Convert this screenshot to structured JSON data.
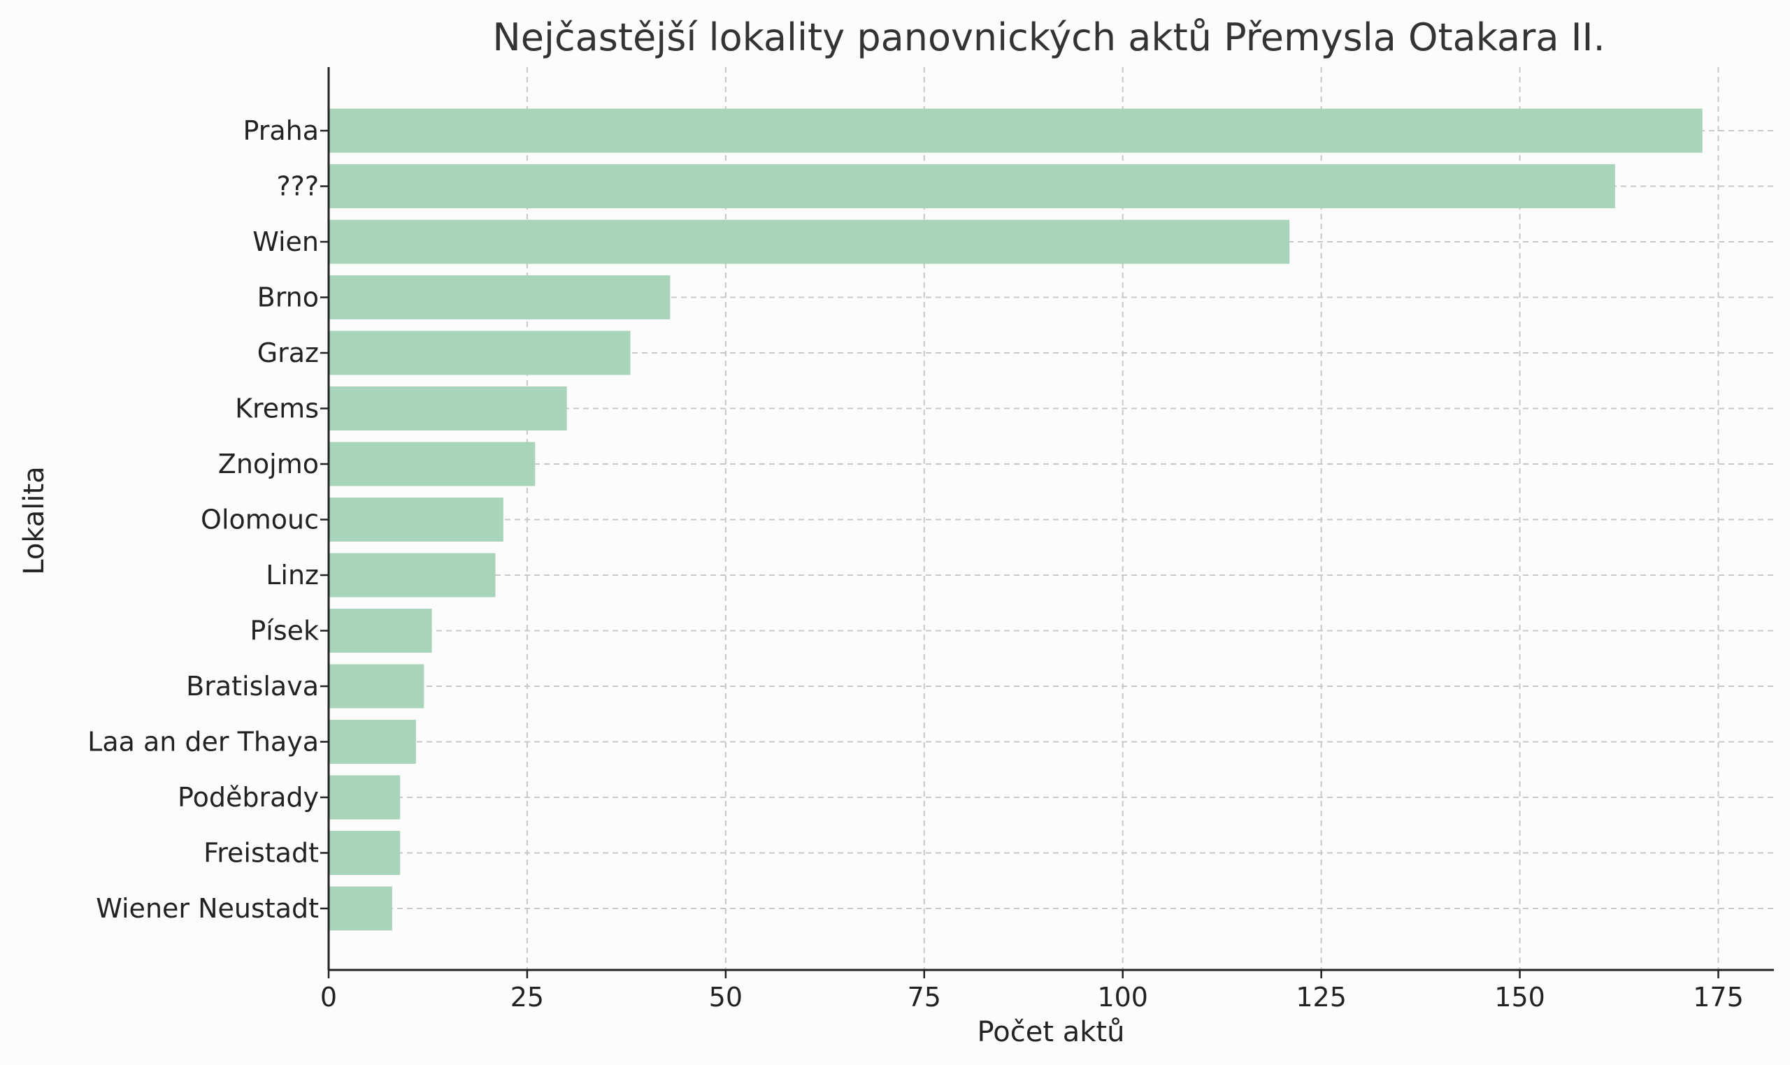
{
  "chart_data": {
    "type": "bar",
    "orientation": "horizontal",
    "title": "Nejčastější lokality panovnických aktů Přemysla Otakara II.",
    "xlabel": "Počet aktů",
    "ylabel": "Lokalita",
    "categories": [
      "Praha",
      "???",
      "Wien",
      "Brno",
      "Graz",
      "Krems",
      "Znojmo",
      "Olomouc",
      "Linz",
      "Písek",
      "Bratislava",
      "Laa an der Thaya",
      "Poděbrady",
      "Freistadt",
      "Wiener Neustadt"
    ],
    "values": [
      173,
      162,
      121,
      43,
      38,
      30,
      26,
      22,
      21,
      13,
      12,
      11,
      9,
      9,
      8
    ],
    "xlim": [
      0,
      182
    ],
    "xticks": [
      0,
      25,
      50,
      75,
      100,
      125,
      150,
      175
    ],
    "grid": true,
    "bar_color": "#a8d5b9"
  }
}
